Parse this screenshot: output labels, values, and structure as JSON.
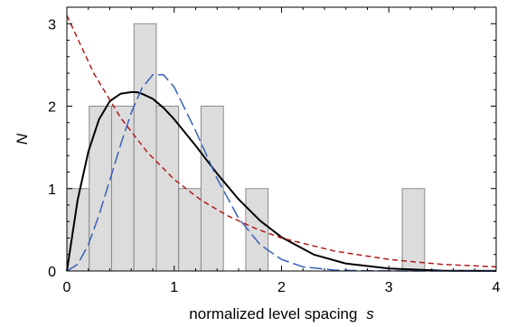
{
  "chart_data": {
    "type": "bar",
    "title": "",
    "xlabel": "normalized level spacing",
    "xlabel_var": "s",
    "ylabel": "N",
    "xlim": [
      0,
      4
    ],
    "ylim": [
      0,
      3.2
    ],
    "xticks": [
      "0",
      "1",
      "2",
      "3",
      "4"
    ],
    "yticks": [
      "0",
      "1",
      "2",
      "3"
    ],
    "grid": false,
    "legend": "none",
    "histogram": {
      "bin_width": 0.2083,
      "bins": [
        {
          "x0": 0.0,
          "count": 1
        },
        {
          "x0": 0.2083,
          "count": 2
        },
        {
          "x0": 0.4167,
          "count": 2
        },
        {
          "x0": 0.625,
          "count": 3
        },
        {
          "x0": 0.8333,
          "count": 2
        },
        {
          "x0": 1.0417,
          "count": 1
        },
        {
          "x0": 1.25,
          "count": 2
        },
        {
          "x0": 1.6667,
          "count": 1
        },
        {
          "x0": 3.125,
          "count": 1
        }
      ],
      "fill_color": "#dcdcdc",
      "edge_color": "#8a8a8a"
    },
    "series": [
      {
        "style": "solid",
        "color": "#000000",
        "x": [
          0,
          0.1,
          0.2,
          0.3,
          0.4,
          0.5,
          0.6,
          0.65,
          0.7,
          0.8,
          0.9,
          1.0,
          1.2,
          1.4,
          1.6,
          1.8,
          2.0,
          2.3,
          2.6,
          3.0,
          3.5,
          4.0
        ],
        "y": [
          0,
          0.86,
          1.45,
          1.84,
          2.06,
          2.15,
          2.17,
          2.17,
          2.15,
          2.09,
          1.98,
          1.84,
          1.52,
          1.18,
          0.87,
          0.61,
          0.41,
          0.2,
          0.09,
          0.03,
          0.004,
          0.001
        ]
      },
      {
        "style": "long-dash",
        "color": "#3a5fb8",
        "x": [
          0,
          0.1,
          0.2,
          0.3,
          0.4,
          0.5,
          0.6,
          0.7,
          0.8,
          0.9,
          1.0,
          1.2,
          1.4,
          1.6,
          1.8,
          2.0,
          2.2,
          2.5,
          2.8,
          3.2,
          4.0
        ],
        "y": [
          0,
          0.08,
          0.32,
          0.68,
          1.1,
          1.53,
          1.92,
          2.22,
          2.38,
          2.38,
          2.23,
          1.7,
          1.12,
          0.64,
          0.32,
          0.14,
          0.05,
          0.01,
          0.003,
          0.0005,
          0
        ]
      },
      {
        "style": "short-dash",
        "color": "#b01c1c",
        "x": [
          0,
          0.25,
          0.5,
          0.75,
          1.0,
          1.25,
          1.5,
          1.75,
          2.0,
          2.5,
          3.0,
          3.5,
          4.0
        ],
        "y": [
          3.1,
          2.4,
          1.86,
          1.44,
          1.11,
          0.86,
          0.67,
          0.52,
          0.4,
          0.24,
          0.14,
          0.08,
          0.05
        ]
      }
    ]
  }
}
